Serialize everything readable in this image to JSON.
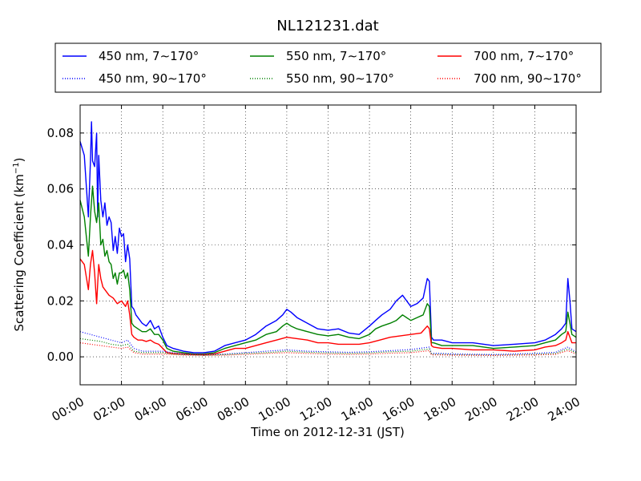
{
  "chart_data": {
    "type": "line",
    "title": "NL121231.dat",
    "xlabel": "Time on 2012-12-31 (JST)",
    "ylabel": "Scattering Coefficient (km",
    "ylabel_sup": "−1",
    "ylabel_end": ")",
    "xlim": [
      0,
      24
    ],
    "ylim": [
      -0.01,
      0.09
    ],
    "xticks": [
      0,
      2,
      4,
      6,
      8,
      10,
      12,
      14,
      16,
      18,
      20,
      22,
      24
    ],
    "xtick_labels": [
      "00:00",
      "02:00",
      "04:00",
      "06:00",
      "08:00",
      "10:00",
      "12:00",
      "14:00",
      "16:00",
      "18:00",
      "20:00",
      "22:00",
      "24:00"
    ],
    "yticks": [
      0.0,
      0.02,
      0.04,
      0.06,
      0.08
    ],
    "ytick_labels": [
      "0.00",
      "0.02",
      "0.04",
      "0.06",
      "0.08"
    ],
    "grid": true,
    "legend_position": "top, above plot, 3 columns",
    "legend": [
      "450 nm, 7∼170°",
      "550 nm, 7∼170°",
      "700 nm, 7∼170°",
      "450 nm, 90∼170°",
      "550 nm, 90∼170°",
      "700 nm, 90∼170°"
    ],
    "series": [
      {
        "name": "450 nm, 7∼170°",
        "color": "#0000ff",
        "style": "solid",
        "x": [
          0,
          0.2,
          0.4,
          0.5,
          0.55,
          0.6,
          0.7,
          0.8,
          0.85,
          0.9,
          1.0,
          1.1,
          1.2,
          1.3,
          1.4,
          1.5,
          1.6,
          1.7,
          1.8,
          1.9,
          2.0,
          2.1,
          2.2,
          2.3,
          2.4,
          2.5,
          2.6,
          2.7,
          2.8,
          3.0,
          3.2,
          3.4,
          3.6,
          3.8,
          4.0,
          4.2,
          4.5,
          5.0,
          5.5,
          6.0,
          6.5,
          7.0,
          7.5,
          8.0,
          8.5,
          9.0,
          9.5,
          9.8,
          10.0,
          10.2,
          10.5,
          11.0,
          11.5,
          12.0,
          12.5,
          13.0,
          13.5,
          14.0,
          14.3,
          14.6,
          15.0,
          15.3,
          15.6,
          16.0,
          16.3,
          16.6,
          16.8,
          16.9,
          17.0,
          17.1,
          17.5,
          18.0,
          19.0,
          20.0,
          21.0,
          22.0,
          22.5,
          23.0,
          23.3,
          23.5,
          23.6,
          23.7,
          23.8,
          24.0
        ],
        "y": [
          0.077,
          0.072,
          0.05,
          0.07,
          0.084,
          0.07,
          0.068,
          0.08,
          0.05,
          0.072,
          0.056,
          0.05,
          0.055,
          0.047,
          0.05,
          0.048,
          0.038,
          0.043,
          0.037,
          0.046,
          0.043,
          0.044,
          0.034,
          0.04,
          0.035,
          0.018,
          0.017,
          0.015,
          0.014,
          0.012,
          0.011,
          0.013,
          0.01,
          0.011,
          0.007,
          0.004,
          0.003,
          0.002,
          0.0015,
          0.0015,
          0.002,
          0.004,
          0.005,
          0.006,
          0.008,
          0.011,
          0.013,
          0.015,
          0.017,
          0.016,
          0.014,
          0.012,
          0.01,
          0.0095,
          0.01,
          0.0085,
          0.008,
          0.011,
          0.013,
          0.015,
          0.017,
          0.02,
          0.022,
          0.018,
          0.019,
          0.021,
          0.028,
          0.027,
          0.007,
          0.006,
          0.006,
          0.005,
          0.005,
          0.004,
          0.0045,
          0.005,
          0.006,
          0.008,
          0.01,
          0.012,
          0.028,
          0.02,
          0.01,
          0.009
        ]
      },
      {
        "name": "550 nm, 7∼170°",
        "color": "#008000",
        "style": "solid",
        "x": [
          0,
          0.2,
          0.4,
          0.5,
          0.6,
          0.7,
          0.8,
          0.9,
          1.0,
          1.1,
          1.2,
          1.3,
          1.4,
          1.5,
          1.6,
          1.7,
          1.8,
          1.9,
          2.0,
          2.1,
          2.2,
          2.3,
          2.4,
          2.5,
          2.6,
          2.8,
          3.0,
          3.2,
          3.4,
          3.6,
          3.8,
          4.0,
          4.2,
          4.5,
          5.0,
          5.5,
          6.0,
          6.5,
          7.0,
          7.5,
          8.0,
          8.5,
          9.0,
          9.5,
          9.8,
          10.0,
          10.2,
          10.5,
          11.0,
          11.5,
          12.0,
          12.5,
          13.0,
          13.5,
          14.0,
          14.3,
          14.6,
          15.0,
          15.3,
          15.6,
          16.0,
          16.3,
          16.6,
          16.8,
          16.9,
          17.0,
          17.1,
          17.5,
          18.0,
          19.0,
          20.0,
          21.0,
          22.0,
          22.5,
          23.0,
          23.3,
          23.5,
          23.6,
          23.7,
          23.8,
          24.0
        ],
        "y": [
          0.056,
          0.05,
          0.036,
          0.05,
          0.061,
          0.052,
          0.048,
          0.055,
          0.04,
          0.042,
          0.036,
          0.038,
          0.034,
          0.033,
          0.028,
          0.03,
          0.026,
          0.03,
          0.03,
          0.031,
          0.028,
          0.03,
          0.024,
          0.012,
          0.011,
          0.01,
          0.009,
          0.009,
          0.01,
          0.008,
          0.008,
          0.006,
          0.003,
          0.002,
          0.0015,
          0.001,
          0.001,
          0.0015,
          0.003,
          0.004,
          0.005,
          0.006,
          0.008,
          0.009,
          0.011,
          0.012,
          0.011,
          0.01,
          0.009,
          0.008,
          0.0075,
          0.008,
          0.007,
          0.0065,
          0.008,
          0.01,
          0.011,
          0.012,
          0.013,
          0.015,
          0.013,
          0.014,
          0.015,
          0.019,
          0.018,
          0.005,
          0.005,
          0.004,
          0.004,
          0.004,
          0.003,
          0.0035,
          0.004,
          0.005,
          0.006,
          0.008,
          0.009,
          0.016,
          0.012,
          0.008,
          0.007
        ]
      },
      {
        "name": "700 nm, 7∼170°",
        "color": "#ff0000",
        "style": "solid",
        "x": [
          0,
          0.2,
          0.4,
          0.5,
          0.6,
          0.7,
          0.8,
          0.9,
          1.0,
          1.1,
          1.2,
          1.4,
          1.6,
          1.8,
          2.0,
          2.1,
          2.2,
          2.3,
          2.4,
          2.5,
          2.6,
          2.8,
          3.0,
          3.2,
          3.4,
          3.6,
          3.8,
          4.0,
          4.2,
          4.5,
          5.0,
          5.5,
          6.0,
          6.5,
          7.0,
          7.5,
          8.0,
          8.5,
          9.0,
          9.5,
          10.0,
          10.5,
          11.0,
          11.5,
          12.0,
          12.5,
          13.0,
          13.5,
          14.0,
          14.5,
          15.0,
          15.5,
          16.0,
          16.5,
          16.8,
          16.9,
          17.0,
          17.1,
          17.5,
          18.0,
          19.0,
          20.0,
          21.0,
          22.0,
          22.5,
          23.0,
          23.3,
          23.5,
          23.6,
          23.7,
          23.8,
          24.0
        ],
        "y": [
          0.035,
          0.033,
          0.024,
          0.033,
          0.038,
          0.03,
          0.019,
          0.033,
          0.028,
          0.025,
          0.024,
          0.022,
          0.021,
          0.019,
          0.02,
          0.019,
          0.018,
          0.02,
          0.015,
          0.008,
          0.007,
          0.006,
          0.006,
          0.0055,
          0.006,
          0.005,
          0.0045,
          0.003,
          0.0015,
          0.0012,
          0.001,
          0.0008,
          0.0008,
          0.001,
          0.002,
          0.003,
          0.003,
          0.004,
          0.005,
          0.006,
          0.007,
          0.0065,
          0.006,
          0.005,
          0.005,
          0.0045,
          0.0045,
          0.0045,
          0.005,
          0.006,
          0.007,
          0.0075,
          0.008,
          0.0085,
          0.011,
          0.01,
          0.004,
          0.0035,
          0.003,
          0.003,
          0.0025,
          0.0025,
          0.002,
          0.0025,
          0.0035,
          0.004,
          0.005,
          0.006,
          0.009,
          0.007,
          0.005,
          0.005
        ]
      },
      {
        "name": "450 nm, 90∼170°",
        "color": "#0000ff",
        "style": "dotted",
        "x": [
          0,
          0.5,
          1.0,
          1.5,
          2.0,
          2.3,
          2.6,
          3.0,
          3.5,
          4.0,
          4.5,
          5.0,
          6.0,
          7.0,
          8.0,
          9.0,
          10.0,
          11.0,
          12.0,
          13.0,
          14.0,
          15.0,
          16.0,
          16.9,
          17.0,
          17.5,
          18.0,
          20.0,
          22.0,
          23.0,
          23.6,
          24.0
        ],
        "y": [
          0.009,
          0.008,
          0.007,
          0.006,
          0.005,
          0.006,
          0.003,
          0.002,
          0.002,
          0.002,
          0.0015,
          0.001,
          0.0008,
          0.001,
          0.0015,
          0.002,
          0.0025,
          0.002,
          0.0018,
          0.0016,
          0.0018,
          0.0022,
          0.0026,
          0.0035,
          0.0012,
          0.0012,
          0.001,
          0.0008,
          0.0012,
          0.0016,
          0.0035,
          0.0018
        ]
      },
      {
        "name": "550 nm, 90∼170°",
        "color": "#008000",
        "style": "dotted",
        "x": [
          0,
          0.5,
          1.0,
          1.5,
          2.0,
          2.3,
          2.6,
          3.0,
          3.5,
          4.0,
          4.5,
          5.0,
          6.0,
          7.0,
          8.0,
          9.0,
          10.0,
          11.0,
          12.0,
          13.0,
          14.0,
          15.0,
          16.0,
          16.9,
          17.0,
          17.5,
          18.0,
          20.0,
          22.0,
          23.0,
          23.6,
          24.0
        ],
        "y": [
          0.0065,
          0.006,
          0.0055,
          0.0045,
          0.004,
          0.0045,
          0.002,
          0.0015,
          0.0015,
          0.0015,
          0.001,
          0.0008,
          0.0006,
          0.0008,
          0.0012,
          0.0015,
          0.002,
          0.0016,
          0.0014,
          0.0012,
          0.0014,
          0.0018,
          0.002,
          0.0028,
          0.0009,
          0.0009,
          0.0008,
          0.0006,
          0.0009,
          0.0012,
          0.0028,
          0.0014
        ]
      },
      {
        "name": "700 nm, 90∼170°",
        "color": "#ff0000",
        "style": "dotted",
        "x": [
          0,
          0.5,
          1.0,
          1.5,
          2.0,
          2.3,
          2.6,
          3.0,
          3.5,
          4.0,
          4.5,
          5.0,
          6.0,
          7.0,
          8.0,
          9.0,
          10.0,
          11.0,
          12.0,
          13.0,
          14.0,
          15.0,
          16.0,
          16.9,
          17.0,
          17.5,
          18.0,
          20.0,
          22.0,
          23.0,
          23.6,
          24.0
        ],
        "y": [
          0.005,
          0.0045,
          0.004,
          0.0035,
          0.003,
          0.0035,
          0.0015,
          0.001,
          0.001,
          0.001,
          0.0008,
          0.0006,
          0.0005,
          0.0006,
          0.0009,
          0.0012,
          0.0015,
          0.0012,
          0.001,
          0.0009,
          0.001,
          0.0013,
          0.0015,
          0.0022,
          0.0007,
          0.0007,
          0.0006,
          0.0005,
          0.0007,
          0.0009,
          0.0022,
          0.001
        ]
      }
    ]
  }
}
